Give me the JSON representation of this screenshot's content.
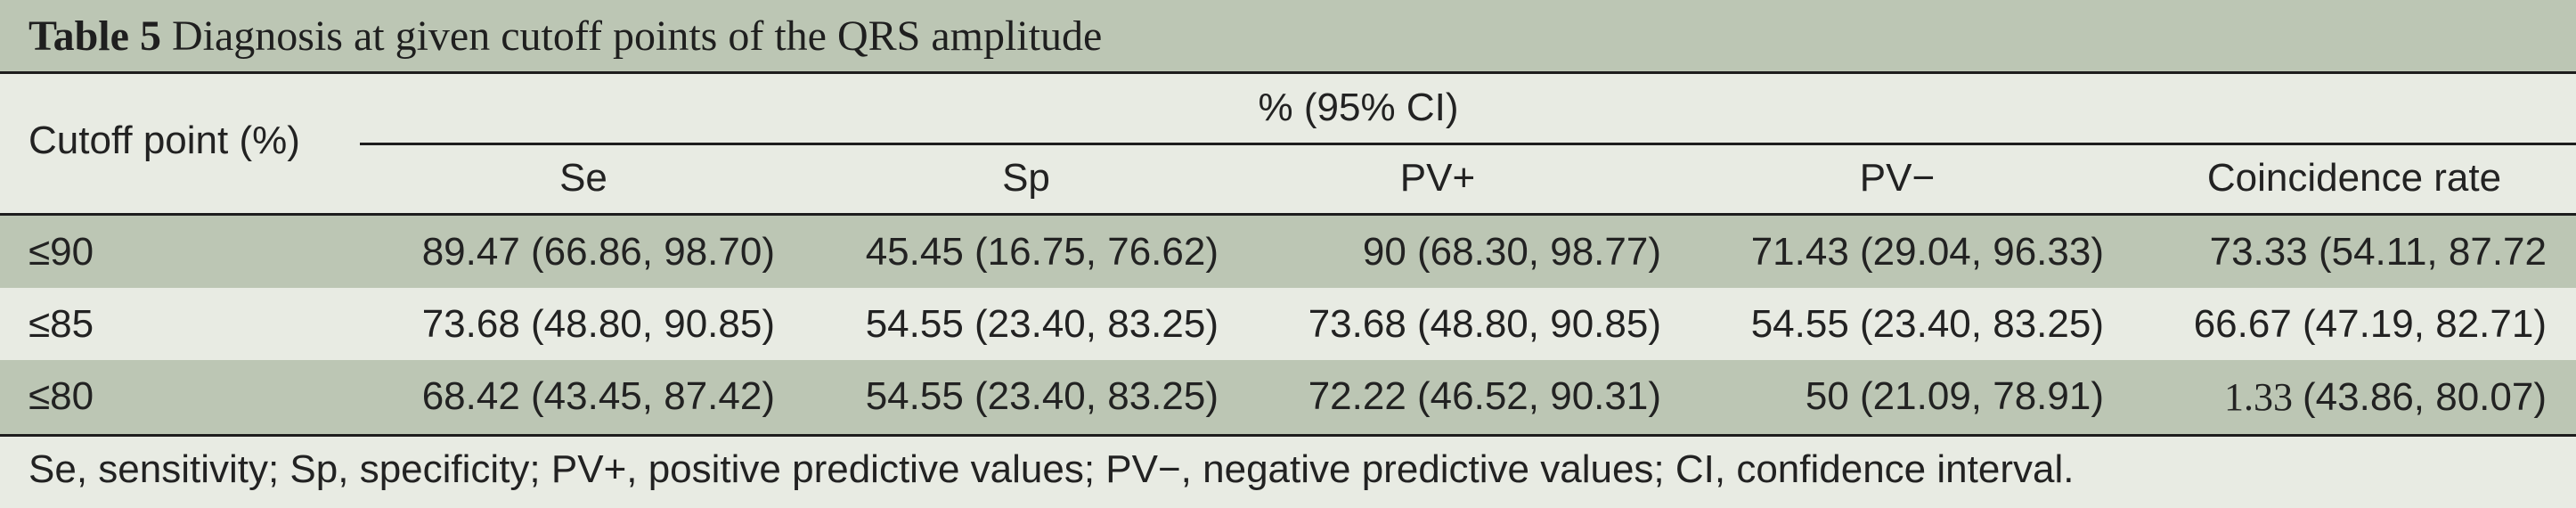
{
  "table": {
    "label": "Table 5",
    "title": "Diagnosis at given cutoff points of the QRS amplitude",
    "row_header": "Cutoff point (%)",
    "group_header": "% (95% CI)",
    "columns": [
      "Se",
      "Sp",
      "PV+",
      "PV−",
      "Coincidence rate"
    ],
    "rows": [
      {
        "cutoff": "≤90",
        "cells": [
          "89.47 (66.86, 98.70)",
          "45.45 (16.75, 76.62)",
          "90 (68.30, 98.77)",
          "71.43 (29.04, 96.33)",
          "73.33 (54.11, 87.72"
        ]
      },
      {
        "cutoff": "≤85",
        "cells": [
          "73.68 (48.80, 90.85)",
          "54.55 (23.40, 83.25)",
          "73.68 (48.80, 90.85)",
          "54.55 (23.40, 83.25)",
          "66.67 (47.19, 82.71)"
        ]
      },
      {
        "cutoff": "≤80",
        "cells": [
          "68.42 (43.45, 87.42)",
          "54.55 (23.40, 83.25)",
          "72.22 (46.52, 90.31)",
          "50 (21.09, 78.91)",
          "(43.86, 80.07)"
        ],
        "last_cell_prefix": "1.33 "
      }
    ],
    "footnote": "Se, sensitivity; Sp, specificity; PV+, positive predictive values; PV−, negative predictive values; CI, confidence interval."
  }
}
